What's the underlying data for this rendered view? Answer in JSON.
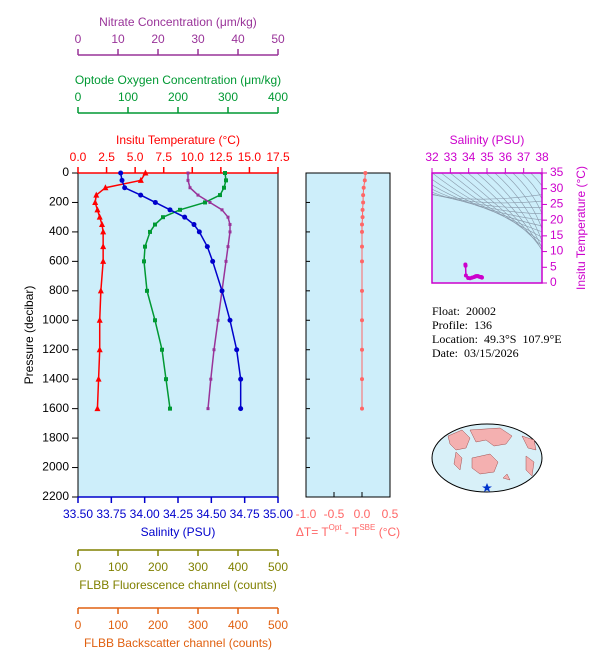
{
  "chart_data": [
    {
      "type": "profile",
      "y_label": "Pressure (decibar)",
      "ylim": [
        0,
        2200
      ],
      "yticks": [
        0,
        200,
        400,
        600,
        800,
        1000,
        1200,
        1400,
        1600,
        1800,
        2000,
        2200
      ],
      "pressure": [
        0,
        50,
        100,
        150,
        200,
        250,
        300,
        350,
        400,
        500,
        600,
        800,
        1000,
        1200,
        1400,
        1600
      ],
      "axes": [
        {
          "label": "Insitu Temperature (°C)",
          "color": "#ff0000",
          "marker": "triangle",
          "xlim": [
            0,
            17.5
          ],
          "xticks": [
            {
              "value": 0,
              "label": "0.0"
            },
            2.5,
            {
              "value": 5,
              "label": "5.0"
            },
            7.5,
            {
              "value": 10,
              "label": "10.0"
            },
            12.5,
            {
              "value": 15,
              "label": "15.0"
            },
            17.5
          ],
          "values": [
            5.9,
            5.5,
            2.4,
            1.6,
            1.5,
            1.7,
            1.9,
            2.1,
            2.2,
            2.2,
            2.2,
            2.0,
            1.9,
            1.9,
            1.8,
            1.7
          ]
        },
        {
          "label": "Optode Oxygen Concentration (μm/kg)",
          "color": "#009933",
          "marker": "square",
          "xlim": [
            0,
            400
          ],
          "xticks": [
            0,
            100,
            200,
            300,
            400
          ],
          "values": [
            294,
            296,
            292,
            284,
            254,
            204,
            170,
            154,
            144,
            134,
            132,
            138,
            154,
            168,
            176,
            184
          ]
        },
        {
          "label": "Nitrate Concentration (μm/kg)",
          "color": "#993399",
          "marker": "small-square",
          "xlim": [
            0,
            50
          ],
          "xticks": [
            0,
            10,
            20,
            30,
            40,
            50
          ],
          "values": [
            27.5,
            27.5,
            28,
            30,
            33,
            36,
            37.5,
            38,
            38,
            37.5,
            37,
            36,
            35,
            34,
            33.2,
            32.5
          ]
        },
        {
          "label": "Salinity (PSU)",
          "color": "#0000cc",
          "marker": "circle",
          "xlim": [
            33.5,
            35.0
          ],
          "xticks": [
            {
              "value": 33.5,
              "label": "33.50"
            },
            33.75,
            {
              "value": 34,
              "label": "34.00"
            },
            34.25,
            {
              "value": 34.5,
              "label": "34.50"
            },
            34.75,
            {
              "value": 35,
              "label": "35.00"
            }
          ],
          "values": [
            33.82,
            33.83,
            33.85,
            33.97,
            34.08,
            34.19,
            34.3,
            34.37,
            34.41,
            34.47,
            34.51,
            34.58,
            34.64,
            34.69,
            34.72,
            34.72
          ]
        },
        {
          "label": "FLBB Fluorescence channel (counts)",
          "color": "#808000",
          "xlim": [
            0,
            500
          ],
          "xticks": [
            0,
            100,
            200,
            300,
            400,
            500
          ]
        },
        {
          "label": "FLBB Backscatter channel (counts)",
          "color": "#e06010",
          "xlim": [
            0,
            500
          ],
          "xticks": [
            0,
            100,
            200,
            300,
            400,
            500
          ]
        }
      ]
    },
    {
      "type": "delta-profile",
      "x_label": [
        "ΔT= T",
        "Opt",
        " - T",
        "SBE",
        " (°C)"
      ],
      "color": "#ff6666",
      "xlim": [
        -1.0,
        0.5
      ],
      "xticks": [
        {
          "value": -1,
          "label": "-1.0"
        },
        -0.5,
        {
          "value": 0,
          "label": "0.0"
        },
        0.5
      ],
      "values": [
        0.06,
        0.05,
        0.03,
        0.02,
        0.02,
        0.01,
        0.01,
        0.0,
        0.0,
        0.0,
        0.0,
        0.0,
        0.0,
        0.0,
        0.0,
        0.0
      ]
    },
    {
      "type": "ts-diagram",
      "x_label": "Salinity (PSU)",
      "y_label": "Insitu Temperature (°C)",
      "color": "#cc00cc",
      "xlim": [
        32,
        38
      ],
      "xticks": [
        32,
        33,
        34,
        35,
        36,
        37,
        38
      ],
      "ylim": [
        0,
        35
      ],
      "yticks": [
        0,
        5,
        10,
        15,
        20,
        25,
        30,
        35
      ]
    }
  ],
  "info": [
    "Float:  20002",
    "Profile:  136",
    "Location:  49.3°S  107.9°E",
    "Date:  03/15/2026"
  ]
}
